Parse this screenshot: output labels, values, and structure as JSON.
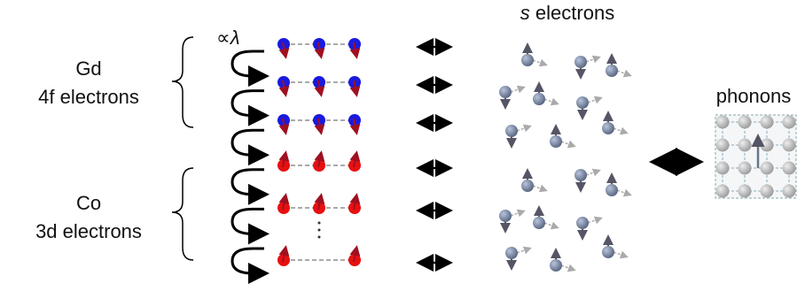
{
  "groups": [
    {
      "element": "Gd",
      "electrons": "4f electrons"
    },
    {
      "element": "Co",
      "electrons": "3d electrons"
    }
  ],
  "coupling": {
    "symbol": "∝",
    "parameter": "λ"
  },
  "s_electrons": {
    "letter": "s",
    "text": "electrons"
  },
  "phonons": "phonons"
}
